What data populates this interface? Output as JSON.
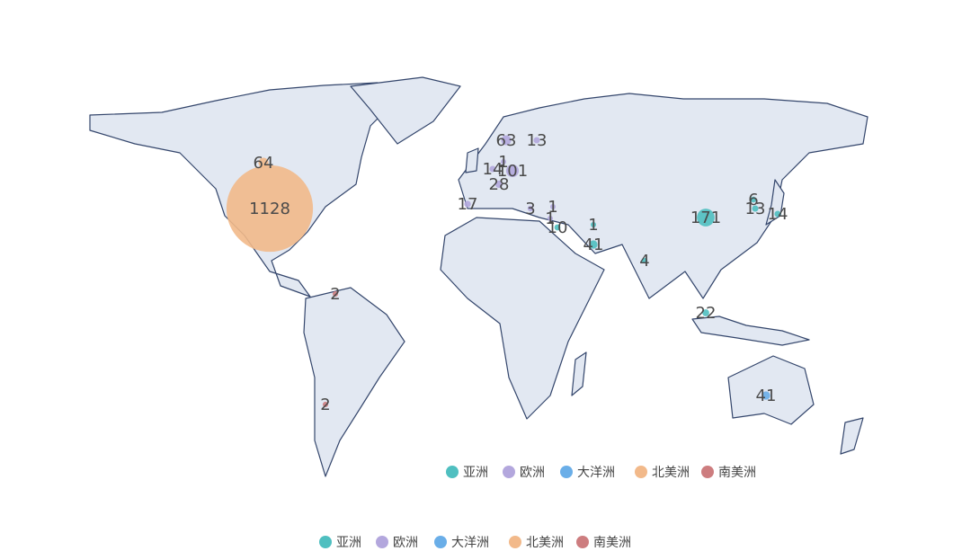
{
  "chart_data": {
    "type": "bubble-map",
    "series": [
      {
        "name": "亚洲",
        "color": "#4fbfc0",
        "values": [
          171,
          13,
          14,
          22,
          4,
          41,
          1,
          10,
          6
        ]
      },
      {
        "name": "欧洲",
        "color": "#b3a7dd",
        "values": [
          63,
          13,
          1,
          14,
          101,
          28,
          3,
          17,
          1,
          1
        ]
      },
      {
        "name": "大洋洲",
        "color": "#6aaee8",
        "values": [
          41
        ]
      },
      {
        "name": "北美洲",
        "color": "#f2b98a",
        "values": [
          1128,
          64
        ]
      },
      {
        "name": "南美洲",
        "color": "#cd7d7f",
        "values": [
          2,
          2
        ]
      }
    ]
  }
}
